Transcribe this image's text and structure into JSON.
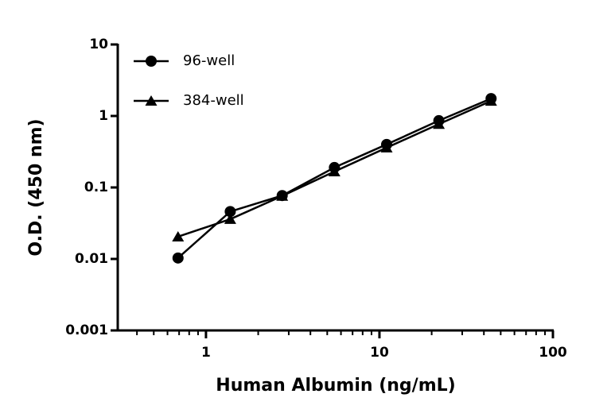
{
  "chart_data": {
    "type": "line",
    "xlabel": "Human Albumin (ng/mL)",
    "ylabel": "O.D. (450 nm)",
    "x": [
      0.69,
      1.38,
      2.75,
      5.5,
      11,
      22,
      44
    ],
    "series": [
      {
        "name": "96-well",
        "color": "#000000",
        "marker": "circle",
        "values": [
          0.0103,
          0.046,
          0.077,
          0.19,
          0.4,
          0.86,
          1.75
        ]
      },
      {
        "name": "384-well",
        "color": "#000000",
        "marker": "triangle",
        "values": [
          0.0205,
          0.036,
          0.076,
          0.167,
          0.36,
          0.77,
          1.62
        ]
      }
    ],
    "xscale": "log",
    "yscale": "log",
    "xlim": [
      0.31,
      100
    ],
    "ylim": [
      0.001,
      10
    ],
    "xticks": [
      1,
      10,
      100
    ],
    "xminorticks": [
      0.4,
      0.5,
      0.6,
      0.7,
      0.8,
      0.9,
      2,
      3,
      4,
      5,
      6,
      7,
      8,
      9,
      20,
      30,
      40,
      50,
      60,
      70,
      80,
      90
    ],
    "yticks": [
      0.001,
      0.01,
      0.1,
      1,
      10
    ],
    "legend": "upper-left"
  }
}
